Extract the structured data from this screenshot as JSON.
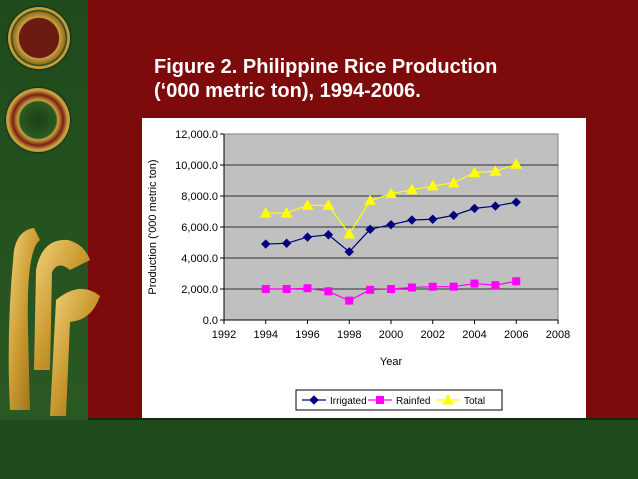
{
  "title": {
    "line1": "Figure 2. Philippine Rice Production",
    "line2": "(‘000 metric ton), 1994-2006."
  },
  "colors": {
    "background": "#7e0b0b",
    "band": "#1f4a1c",
    "irrigated": "#000080",
    "rainfed": "#ff00ff",
    "total": "#ffff00",
    "plot_area": "#c0c0c0"
  },
  "chart_data": {
    "type": "line",
    "xlabel": "Year",
    "ylabel": "Production (‘000 metric ton)",
    "xlim": [
      1992,
      2008
    ],
    "ylim": [
      0,
      12000
    ],
    "x_ticks": [
      "1992",
      "1994",
      "1996",
      "1998",
      "2000",
      "2002",
      "2004",
      "2006",
      "2008"
    ],
    "y_ticks": [
      "0.0",
      "2,000.0",
      "4,000.0",
      "6,000.0",
      "8,000.0",
      "10,000.0",
      "12,000.0"
    ],
    "grid": "horizontal",
    "legend_position": "bottom",
    "x": [
      1994,
      1995,
      1996,
      1997,
      1998,
      1999,
      2000,
      2001,
      2002,
      2003,
      2004,
      2005,
      2006
    ],
    "series": [
      {
        "name": "Irrigated",
        "marker": "diamond",
        "values": [
          4900,
          4950,
          5350,
          5500,
          4400,
          5850,
          6150,
          6450,
          6500,
          6750,
          7200,
          7350,
          7600
        ]
      },
      {
        "name": "Rainfed",
        "marker": "square",
        "values": [
          2000,
          2000,
          2050,
          1850,
          1250,
          1950,
          2000,
          2100,
          2150,
          2150,
          2350,
          2250,
          2500
        ]
      },
      {
        "name": "Total",
        "marker": "triangle",
        "values": [
          6900,
          6900,
          7400,
          7400,
          5550,
          7700,
          8150,
          8400,
          8650,
          8850,
          9500,
          9600,
          10050
        ]
      }
    ]
  }
}
